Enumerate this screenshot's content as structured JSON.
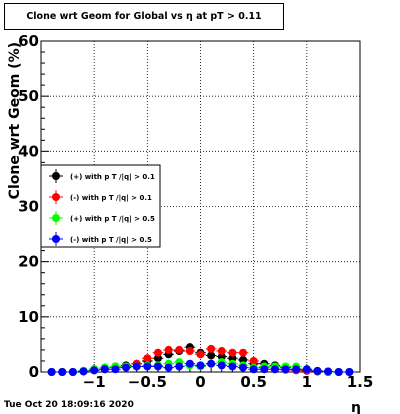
{
  "chart_data": {
    "type": "scatter",
    "title": "Clone wrt Geom for Global vs  η at pT > 0.11",
    "xlabel": "η",
    "ylabel": "Clone wrt Geom (%)",
    "xlim": [
      -1.5,
      1.5
    ],
    "ylim": [
      0,
      60
    ],
    "grid": true,
    "legend_placement": "middle-left",
    "x_ticks": [
      -1,
      -0.5,
      0,
      0.5,
      1,
      1.5
    ],
    "x_tick_labels": [
      "−1",
      "−0.5",
      "0",
      "0.5",
      "1",
      "1.5"
    ],
    "y_ticks": [
      0,
      10,
      20,
      30,
      40,
      50,
      60
    ],
    "y_tick_labels": [
      "0",
      "10",
      "20",
      "30",
      "40",
      "50",
      "60"
    ],
    "series": [
      {
        "name": "(+) with p T /|q| > 0.1",
        "color": "#000000",
        "x": [
          -1.4,
          -1.3,
          -1.2,
          -1.1,
          -1.0,
          -0.9,
          -0.8,
          -0.7,
          -0.6,
          -0.5,
          -0.4,
          -0.3,
          -0.2,
          -0.1,
          0.0,
          0.1,
          0.2,
          0.3,
          0.4,
          0.5,
          0.6,
          0.7,
          0.8,
          0.9,
          1.0,
          1.1,
          1.2,
          1.3,
          1.4
        ],
        "y": [
          0,
          0,
          0,
          0.2,
          0.5,
          0.8,
          1.0,
          1.2,
          1.5,
          2.0,
          2.5,
          3.2,
          3.8,
          4.5,
          3.5,
          3.0,
          2.8,
          2.5,
          2.2,
          1.5,
          1.5,
          1.2,
          0.8,
          0.5,
          0.3,
          0.1,
          0,
          0,
          0
        ]
      },
      {
        "name": "(-) with p T /|q| > 0.1",
        "color": "#ff0000",
        "x": [
          -1.4,
          -1.3,
          -1.2,
          -1.1,
          -1.0,
          -0.9,
          -0.8,
          -0.7,
          -0.6,
          -0.5,
          -0.4,
          -0.3,
          -0.2,
          -0.1,
          0.0,
          0.1,
          0.2,
          0.3,
          0.4,
          0.5,
          0.6,
          0.7,
          0.8,
          0.9,
          1.0,
          1.1,
          1.2,
          1.3,
          1.4
        ],
        "y": [
          0,
          0,
          0,
          0.1,
          0.3,
          0.5,
          0.8,
          1.0,
          1.5,
          2.5,
          3.5,
          4.0,
          4.0,
          3.8,
          3.2,
          4.2,
          3.8,
          3.5,
          3.5,
          2.0,
          0.8,
          0.5,
          0.4,
          0.3,
          0.2,
          0.2,
          0.1,
          0,
          0
        ]
      },
      {
        "name": "(+) with p T /|q| > 0.5",
        "color": "#00ff00",
        "x": [
          -1.4,
          -1.3,
          -1.2,
          -1.1,
          -1.0,
          -0.9,
          -0.8,
          -0.7,
          -0.6,
          -0.5,
          -0.4,
          -0.3,
          -0.2,
          -0.1,
          0.0,
          0.1,
          0.2,
          0.3,
          0.4,
          0.5,
          0.6,
          0.7,
          0.8,
          0.9,
          1.0,
          1.1,
          1.2,
          1.3,
          1.4
        ],
        "y": [
          0,
          0,
          0,
          0.2,
          0.5,
          0.8,
          1.0,
          1.0,
          1.0,
          1.2,
          1.2,
          1.5,
          1.8,
          1.2,
          1.0,
          1.5,
          1.8,
          1.5,
          1.2,
          0.8,
          1.0,
          1.0,
          1.0,
          1.0,
          0.5,
          0.2,
          0,
          0,
          0
        ]
      },
      {
        "name": "(-) with p T /|q| > 0.5",
        "color": "#0000ff",
        "x": [
          -1.4,
          -1.3,
          -1.2,
          -1.1,
          -1.0,
          -0.9,
          -0.8,
          -0.7,
          -0.6,
          -0.5,
          -0.4,
          -0.3,
          -0.2,
          -0.1,
          0.0,
          0.1,
          0.2,
          0.3,
          0.4,
          0.5,
          0.6,
          0.7,
          0.8,
          0.9,
          1.0,
          1.1,
          1.2,
          1.3,
          1.4
        ],
        "y": [
          0,
          0,
          0,
          0.1,
          0.3,
          0.5,
          0.5,
          0.8,
          1.0,
          1.0,
          1.0,
          0.8,
          1.0,
          1.5,
          1.2,
          1.5,
          1.2,
          1.0,
          0.8,
          0.5,
          0.5,
          0.5,
          0.5,
          0.5,
          0.5,
          0.2,
          0.1,
          0,
          0
        ]
      }
    ]
  },
  "timestamp": "Tue Oct 20 18:09:16 2020"
}
